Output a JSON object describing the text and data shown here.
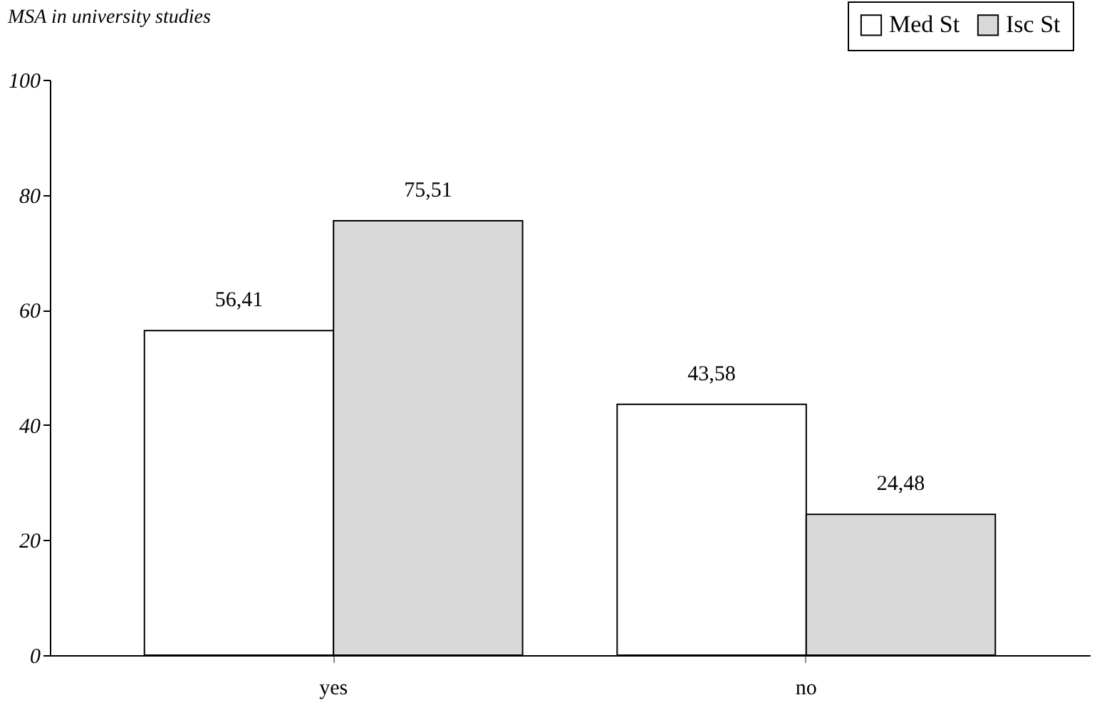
{
  "chart_data": {
    "type": "bar",
    "title": "MSA in university studies",
    "categories": [
      "yes",
      "no"
    ],
    "series": [
      {
        "name": "Med St",
        "color": "#ffffff",
        "values": [
          56.41,
          43.58
        ],
        "value_labels": [
          "56,41",
          "43,58"
        ]
      },
      {
        "name": "Isc St",
        "color": "#d9d9d9",
        "values": [
          75.51,
          24.48
        ],
        "value_labels": [
          "75,51",
          "24,48"
        ]
      }
    ],
    "ylim": [
      0,
      100
    ],
    "yticks": [
      0,
      20,
      40,
      60,
      80,
      100
    ],
    "grid": false,
    "legend": "top right"
  }
}
